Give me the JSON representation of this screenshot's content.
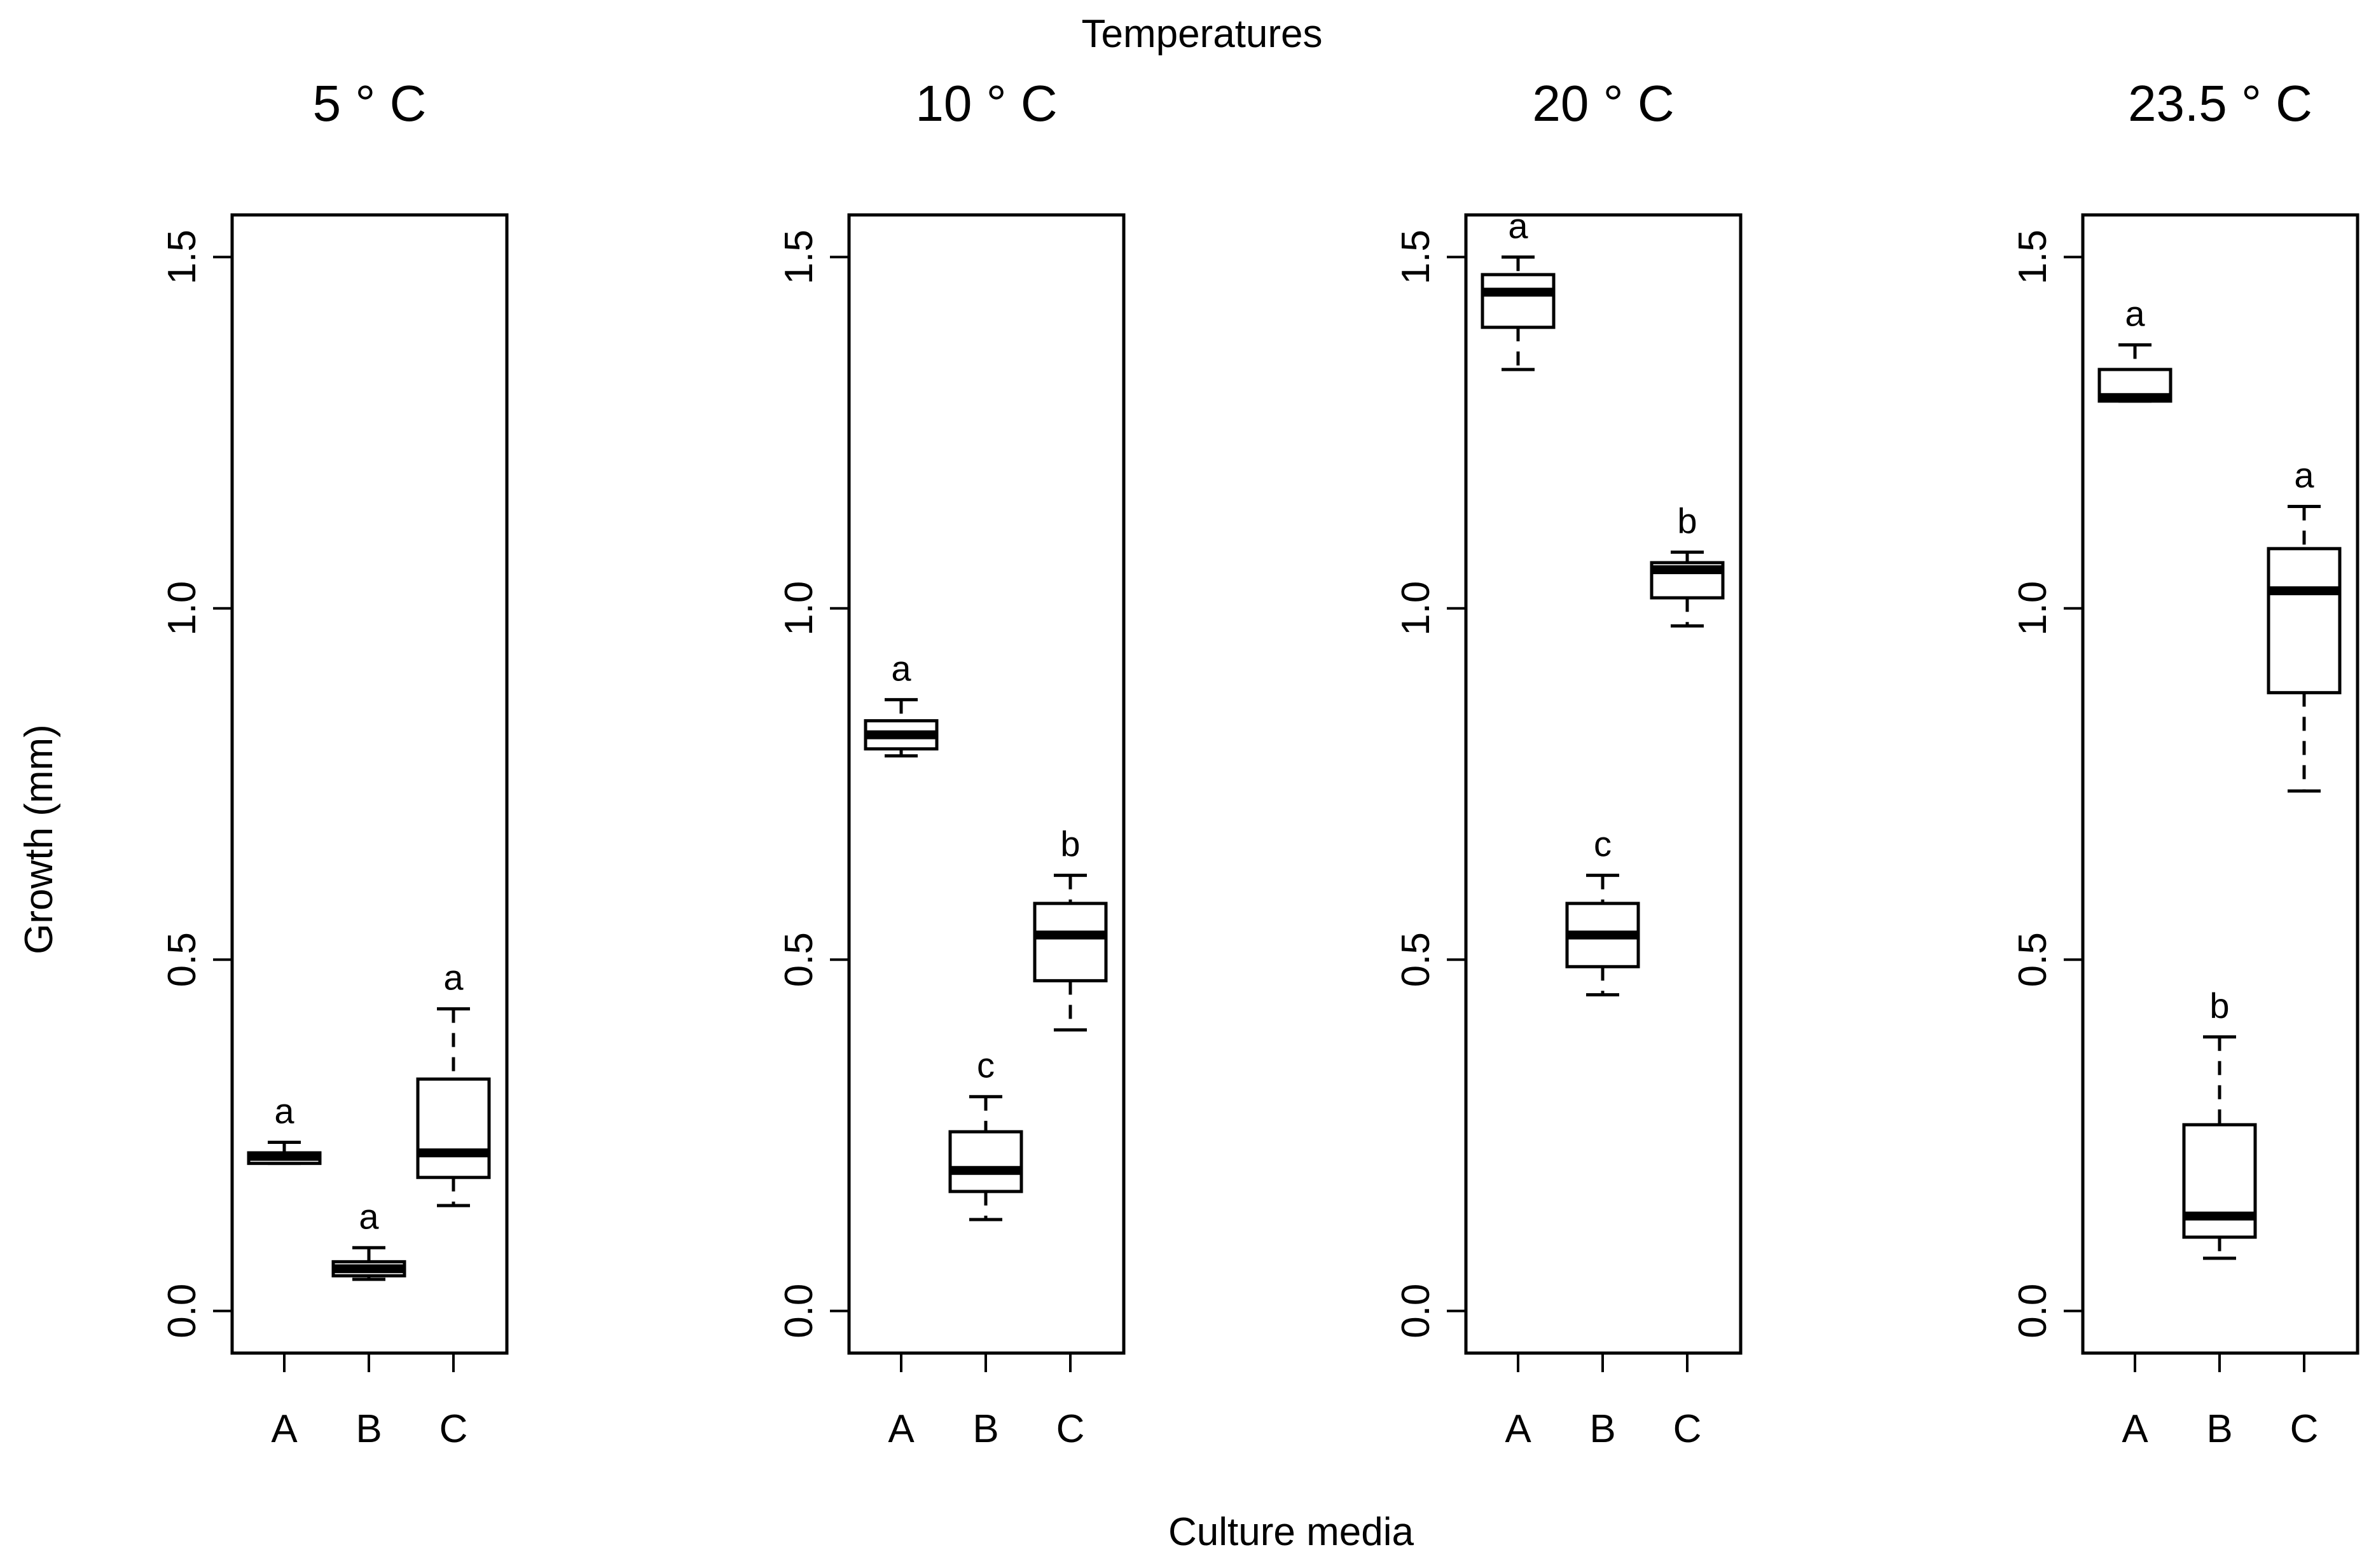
{
  "figure": {
    "top_label": "Temperatures",
    "xlabel": "Culture media",
    "ylabel": "Growth (mm)"
  },
  "chart_data": [
    {
      "type": "box",
      "title": "5 ° C",
      "categories": [
        "A",
        "B",
        "C"
      ],
      "ylim": [
        -0.06,
        1.56
      ],
      "yticks": [
        "0.0",
        "0.5",
        "1.0",
        "1.5"
      ],
      "boxes": [
        {
          "category": "A",
          "min": 0.21,
          "q1": 0.21,
          "median": 0.22,
          "q3": 0.225,
          "max": 0.24,
          "label": "a"
        },
        {
          "category": "B",
          "min": 0.045,
          "q1": 0.05,
          "median": 0.06,
          "q3": 0.07,
          "max": 0.09,
          "label": "a"
        },
        {
          "category": "C",
          "min": 0.15,
          "q1": 0.19,
          "median": 0.225,
          "q3": 0.33,
          "max": 0.43,
          "label": "a"
        }
      ]
    },
    {
      "type": "box",
      "title": "10 ° C",
      "categories": [
        "A",
        "B",
        "C"
      ],
      "ylim": [
        -0.06,
        1.56
      ],
      "yticks": [
        "0.0",
        "0.5",
        "1.0",
        "1.5"
      ],
      "boxes": [
        {
          "category": "A",
          "min": 0.79,
          "q1": 0.8,
          "median": 0.82,
          "q3": 0.84,
          "max": 0.87,
          "label": "a"
        },
        {
          "category": "B",
          "min": 0.13,
          "q1": 0.17,
          "median": 0.2,
          "q3": 0.255,
          "max": 0.305,
          "label": "c"
        },
        {
          "category": "C",
          "min": 0.4,
          "q1": 0.47,
          "median": 0.535,
          "q3": 0.58,
          "max": 0.62,
          "label": "b"
        }
      ]
    },
    {
      "type": "box",
      "title": "20 ° C",
      "categories": [
        "A",
        "B",
        "C"
      ],
      "ylim": [
        -0.06,
        1.56
      ],
      "yticks": [
        "0.0",
        "0.5",
        "1.0",
        "1.5"
      ],
      "boxes": [
        {
          "category": "A",
          "min": 1.34,
          "q1": 1.4,
          "median": 1.45,
          "q3": 1.475,
          "max": 1.5,
          "label": "a"
        },
        {
          "category": "B",
          "min": 0.45,
          "q1": 0.49,
          "median": 0.535,
          "q3": 0.58,
          "max": 0.62,
          "label": "c"
        },
        {
          "category": "C",
          "min": 0.975,
          "q1": 1.015,
          "median": 1.055,
          "q3": 1.065,
          "max": 1.08,
          "label": "b"
        }
      ]
    },
    {
      "type": "box",
      "title": "23.5 ° C",
      "categories": [
        "A",
        "B",
        "C"
      ],
      "ylim": [
        -0.06,
        1.56
      ],
      "yticks": [
        "0.0",
        "0.5",
        "1.0",
        "1.5"
      ],
      "boxes": [
        {
          "category": "A",
          "min": 1.295,
          "q1": 1.295,
          "median": 1.3,
          "q3": 1.34,
          "max": 1.375,
          "label": "a"
        },
        {
          "category": "B",
          "min": 0.075,
          "q1": 0.105,
          "median": 0.135,
          "q3": 0.265,
          "max": 0.39,
          "label": "b"
        },
        {
          "category": "C",
          "min": 0.74,
          "q1": 0.88,
          "median": 1.025,
          "q3": 1.085,
          "max": 1.145,
          "label": "a"
        }
      ]
    }
  ]
}
